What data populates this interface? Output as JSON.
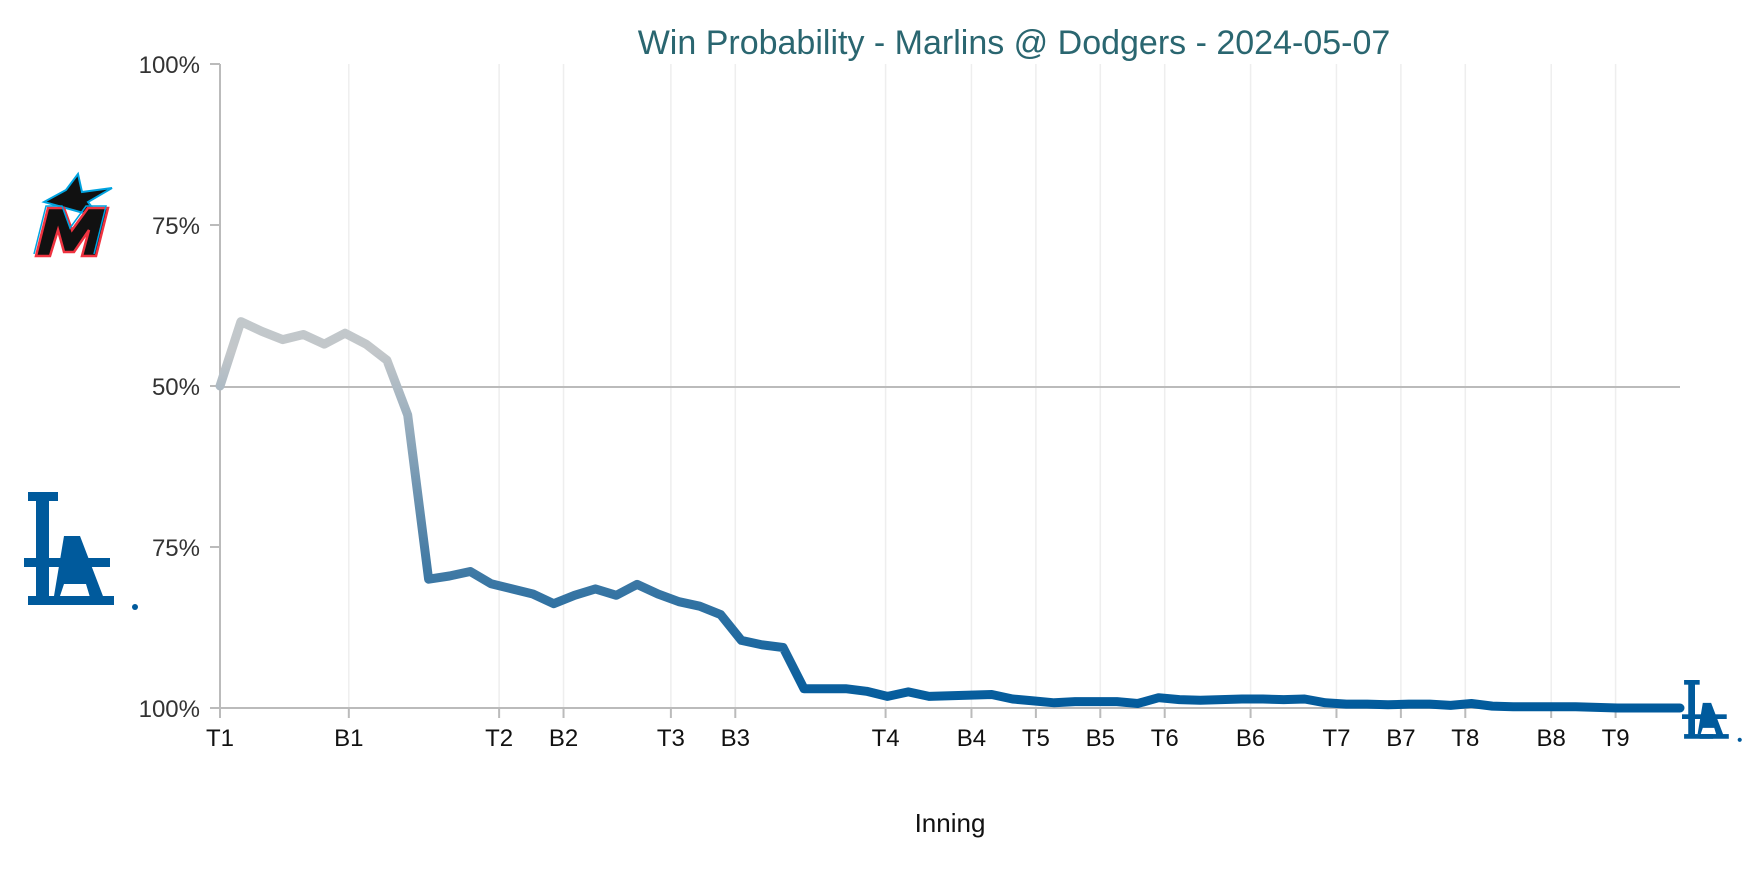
{
  "chart_data": {
    "type": "line",
    "title": "Win Probability - Marlins @ Dodgers - 2024-05-07",
    "xlabel": "Inning",
    "ylabel": "",
    "y_tick_labels": [
      "100%",
      "75%",
      "50%",
      "75%",
      "100%"
    ],
    "x_tick_labels": [
      "T1",
      "B1",
      "T2",
      "B2",
      "T3",
      "B3",
      "T4",
      "B4",
      "T5",
      "B5",
      "T6",
      "B6",
      "T7",
      "B7",
      "T8",
      "B8",
      "T9"
    ],
    "x_tick_positions": [
      0,
      6,
      13,
      16,
      21,
      24,
      31,
      35,
      38,
      41,
      44,
      48,
      52,
      55,
      58,
      62,
      65
    ],
    "x_range": [
      0,
      68
    ],
    "y_range": [
      -50,
      50
    ],
    "y_meaning": "Marlins win probability minus 50 (positive = Marlins favored, negative = Dodgers favored)",
    "series": [
      {
        "values": [
          0,
          10,
          8.5,
          7.2,
          8,
          6.5,
          8.2,
          6.5,
          4,
          -4.5,
          -30,
          -29.5,
          -28.8,
          -30.7,
          -31.5,
          -32.3,
          -33.8,
          -32.5,
          -31.5,
          -32.5,
          -30.8,
          -32.3,
          -33.5,
          -34.2,
          -35.5,
          -39.5,
          -40.2,
          -40.6,
          -47,
          -47,
          -47,
          -47.4,
          -48.2,
          -47.5,
          -48.2,
          -48.1,
          -48,
          -47.9,
          -48.6,
          -48.9,
          -49.2,
          -49,
          -49,
          -49,
          -49.3,
          -48.4,
          -48.7,
          -48.8,
          -48.7,
          -48.6,
          -48.6,
          -48.7,
          -48.6,
          -49.2,
          -49.4,
          -49.4,
          -49.5,
          -49.4,
          -49.4,
          -49.6,
          -49.3,
          -49.7,
          -49.8,
          -49.8,
          -49.8,
          -49.8,
          -49.9,
          -50,
          -50,
          -50,
          -50
        ]
      }
    ],
    "colors": {
      "marlins_side": "#a7c4cf",
      "dodgers_side": "#005a9c",
      "title": "#2a6670",
      "axis": "#bbbbbb",
      "grid": "#eeeeee"
    },
    "icons": {
      "top_logo": "marlins-logo-icon",
      "bottom_logo": "dodgers-la-logo-icon",
      "end_logo": "dodgers-la-logo-icon"
    },
    "grid": true,
    "legend": "none"
  }
}
